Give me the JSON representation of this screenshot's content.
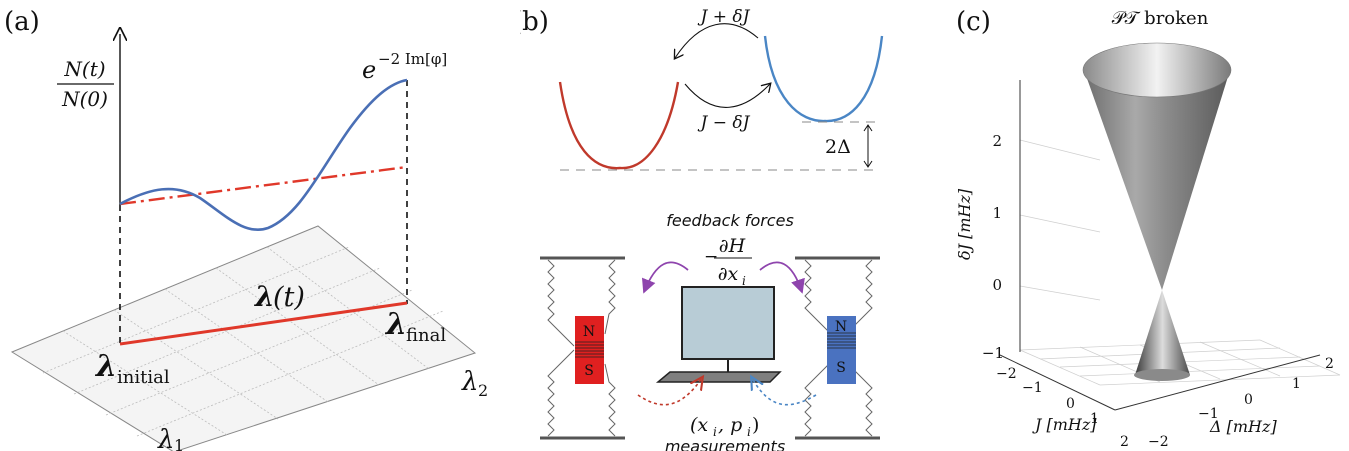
{
  "panel_a": {
    "label": "(a)",
    "y_fraction_num": "N(t)",
    "y_fraction_den": "N(0)",
    "curve_label_base": "e",
    "curve_label_exp": "−2 Im[φ]",
    "path_label_bold": "λ",
    "path_label_arg": "(t)",
    "initial_label": "λ",
    "initial_sub": "initial",
    "final_label": "λ",
    "final_sub": "final",
    "axis1_label": "λ",
    "axis1_sub": "1",
    "axis2_label": "λ",
    "axis2_sub": "2",
    "colors": {
      "curve": "#4a6fb5",
      "line": "#e0382a",
      "grid": "#bbbbbb"
    }
  },
  "panel_b": {
    "label": "(b)",
    "upper_arrow_label": "J + δJ",
    "lower_arrow_label": "J − δJ",
    "gap_label": "2Δ",
    "feedback_label": "feedback forces",
    "deriv_minus": "−",
    "deriv_num": "∂H",
    "deriv_den": "∂x",
    "deriv_sub": "i",
    "magnet_n": "N",
    "magnet_s": "S",
    "measure_vars": "(x",
    "measure_sub": "i",
    "measure_mid": ", p",
    "measure_sub2": "i",
    "measure_close": ")",
    "measurements_label": "measurements",
    "colors": {
      "left_well": "#c0392b",
      "right_well": "#4a86c5",
      "magnet_left": "#e02020",
      "magnet_right": "#4a72c0",
      "arrows": "#8e44ad",
      "screen": "#b8ccd6"
    }
  },
  "panel_c": {
    "label": "(c)",
    "top_label": "𝒫𝒯 broken",
    "z_axis_label": "δJ [mHz]",
    "z_ticks": [
      "2",
      "1",
      "0",
      "−1"
    ],
    "x_axis_label": "J [mHz]",
    "x_ticks": [
      "−2",
      "−1",
      "0",
      "1",
      "2"
    ],
    "y_axis_label": "Δ [mHz]",
    "y_ticks": [
      "−2",
      "−1",
      "0",
      "1",
      "2"
    ]
  }
}
